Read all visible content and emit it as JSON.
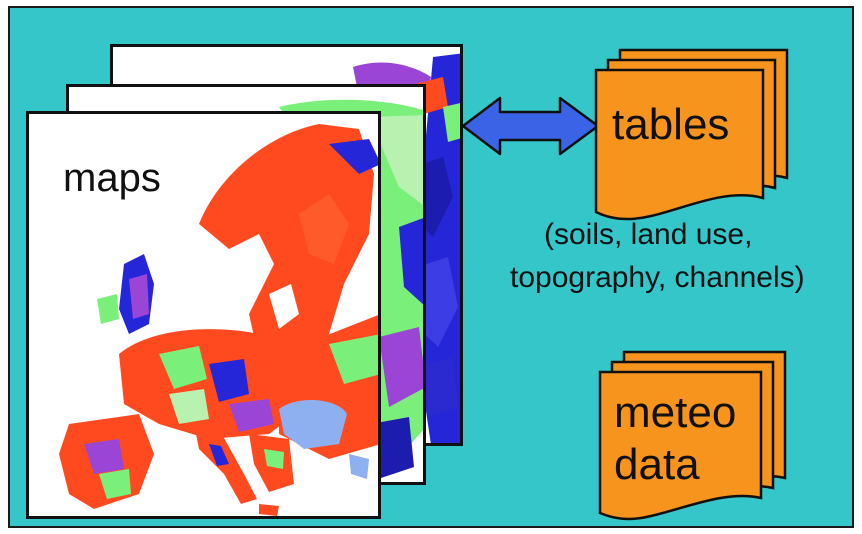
{
  "maps_label": "maps",
  "tables_label": "tables",
  "tables_note_line1": "(soils, land use,",
  "tables_note_line2": "topography, channels)",
  "meteo_label_line1": "meteo",
  "meteo_label_line2": "data",
  "colors": {
    "background": "#34c6c9",
    "doc_fill": "#f7941d",
    "arrow_fill": "#3a63e6",
    "map_red": "#ff4a1f",
    "map_blue": "#2626d9",
    "map_green": "#7af07a",
    "map_pale": "#b9f2b0",
    "map_purple": "#9a45d6",
    "map_lightblue": "#8eb0f0"
  }
}
